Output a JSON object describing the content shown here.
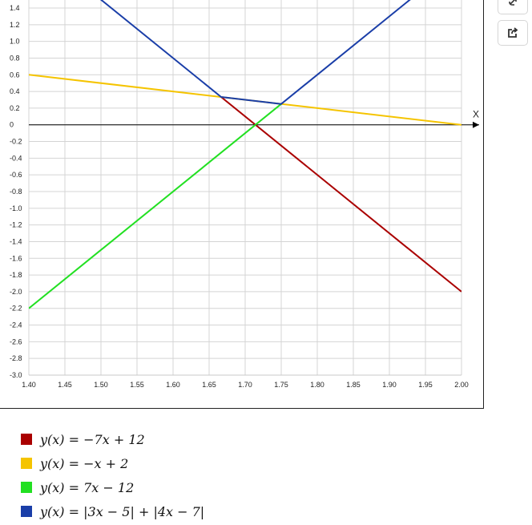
{
  "chart_data": {
    "type": "line",
    "x_axis_label": "X",
    "xlim": [
      1.4,
      2.0
    ],
    "ylim": [
      -3.0,
      1.4
    ],
    "x_ticks": [
      "1.40",
      "1.45",
      "1.50",
      "1.55",
      "1.60",
      "1.65",
      "1.70",
      "1.75",
      "1.80",
      "1.85",
      "1.90",
      "1.95",
      "2.00"
    ],
    "y_ticks": [
      "1.4",
      "1.2",
      "1.0",
      "0.8",
      "0.6",
      "0.4",
      "0.2",
      "0",
      "-0.2",
      "-0.4",
      "-0.6",
      "-0.8",
      "-1.0",
      "-1.2",
      "-1.4",
      "-1.6",
      "-1.8",
      "-2.0",
      "-2.2",
      "-2.4",
      "-2.6",
      "-2.8",
      "-3.0"
    ],
    "grid": true,
    "series": [
      {
        "name": "y(x) = −7x + 12",
        "color": "#aa0000",
        "x": [
          1.6667,
          2.0
        ],
        "y": [
          0.3333,
          -2.0
        ]
      },
      {
        "name": "y(x) = −x + 2",
        "color": "#f5c400",
        "x": [
          1.4,
          2.0
        ],
        "y": [
          0.6,
          0.0
        ]
      },
      {
        "name": "y(x) = 7x − 12",
        "color": "#22e022",
        "x": [
          1.4,
          1.75
        ],
        "y": [
          -2.2,
          0.25
        ]
      },
      {
        "name": "y(x) = |3x − 5| + |4x − 7|",
        "color": "#1a3ea8",
        "x": [
          1.4,
          1.6667,
          1.75,
          2.0
        ],
        "y": [
          2.2,
          0.3333,
          0.25,
          2.0
        ]
      }
    ]
  },
  "legend": [
    {
      "text": "y(x) = −7x + 12",
      "color": "#aa0000"
    },
    {
      "text": "y(x) = −x + 2",
      "color": "#f5c400"
    },
    {
      "text": "y(x) = 7x − 12",
      "color": "#22e022"
    },
    {
      "text": "y(x) = |3x − 5| + |4x − 7|",
      "color": "#1a3ea8"
    }
  ],
  "icons": {
    "top": "link-icon",
    "share": "share-icon"
  }
}
